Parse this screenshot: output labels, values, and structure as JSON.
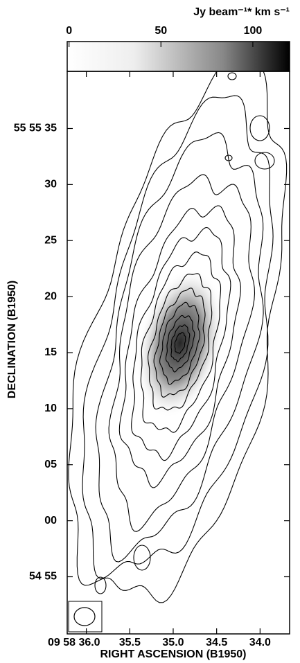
{
  "chart_data": {
    "type": "contour",
    "colorbar": {
      "label": "Jy beam⁻¹* km s⁻¹",
      "lim": [
        -1,
        120
      ],
      "ticks": [
        0,
        50,
        100
      ]
    },
    "xlabel": "RIGHT ASCENSION (B1950)",
    "ylabel": "DECLINATION (B1950)",
    "xlim": [
      36.22,
      33.66
    ],
    "xticks": [
      {
        "value": 36,
        "label": "09 58 36.0"
      },
      35.5,
      {
        "value": 35,
        "label": "35.0"
      },
      34.5,
      {
        "value": 34,
        "label": "34.0"
      }
    ],
    "ylim": [
      -10.1,
      40.1
    ],
    "yticks": [
      {
        "value": 35,
        "label": "55 55 35"
      },
      30,
      25,
      20,
      15,
      10,
      {
        "value": 5,
        "label": "05"
      },
      {
        "value": 0,
        "label": "00"
      },
      {
        "value": -5,
        "label": "54 55"
      }
    ]
  }
}
